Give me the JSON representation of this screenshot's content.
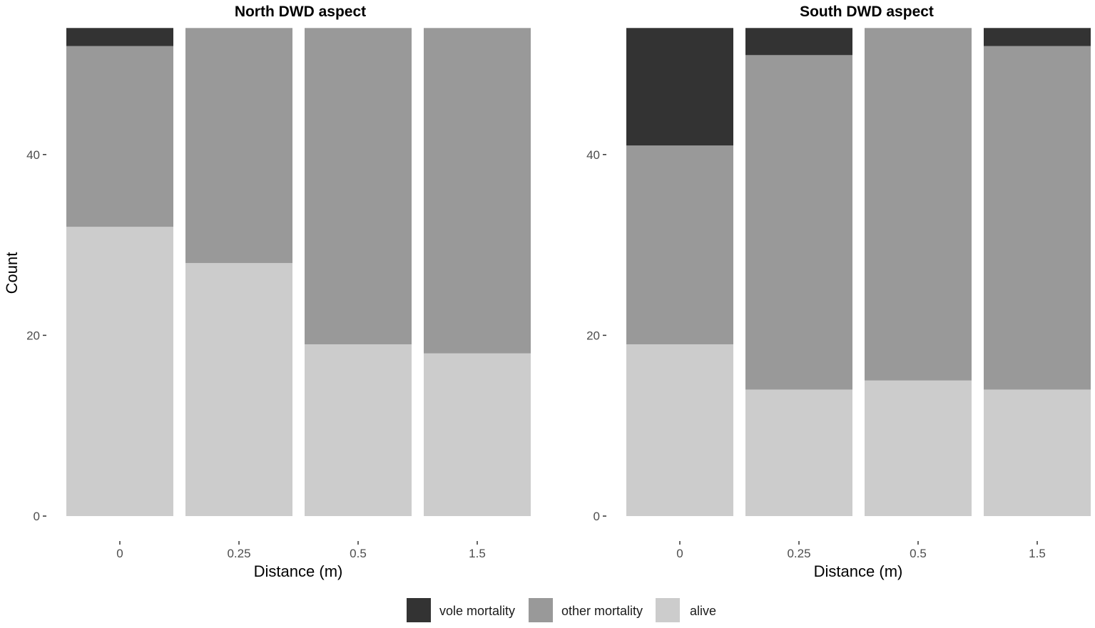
{
  "chart_data": [
    {
      "type": "bar",
      "stacked": true,
      "title": "North DWD aspect",
      "xlabel": "Distance (m)",
      "ylabel": "Count",
      "categories": [
        "0",
        "0.25",
        "0.5",
        "1.5"
      ],
      "ylim": [
        0,
        54
      ],
      "yticks": [
        0,
        20,
        40
      ],
      "ytick_labels": [
        "0",
        "20",
        "40"
      ],
      "grid": false,
      "series": [
        {
          "name": "alive",
          "values": [
            32,
            28,
            19,
            18
          ]
        },
        {
          "name": "other mortality",
          "values": [
            20,
            26,
            35,
            36
          ]
        },
        {
          "name": "vole mortality",
          "values": [
            2,
            0,
            0,
            0
          ]
        }
      ]
    },
    {
      "type": "bar",
      "stacked": true,
      "title": "South DWD aspect",
      "xlabel": "Distance (m)",
      "ylabel": "",
      "categories": [
        "0",
        "0.25",
        "0.5",
        "1.5"
      ],
      "ylim": [
        0,
        54
      ],
      "yticks": [
        0,
        20,
        40
      ],
      "ytick_labels": [
        "0",
        "20",
        "40"
      ],
      "grid": false,
      "series": [
        {
          "name": "alive",
          "values": [
            19,
            14,
            15,
            14
          ]
        },
        {
          "name": "other mortality",
          "values": [
            22,
            37,
            39,
            38
          ]
        },
        {
          "name": "vole mortality",
          "values": [
            13,
            3,
            0,
            2
          ]
        }
      ]
    }
  ],
  "legend": {
    "position": "bottom",
    "items": [
      {
        "name": "vole mortality",
        "color": "#333333"
      },
      {
        "name": "other mortality",
        "color": "#999999"
      },
      {
        "name": "alive",
        "color": "#cccccc"
      }
    ]
  },
  "colors": {
    "vole mortality": "#333333",
    "other mortality": "#999999",
    "alive": "#cccccc"
  }
}
